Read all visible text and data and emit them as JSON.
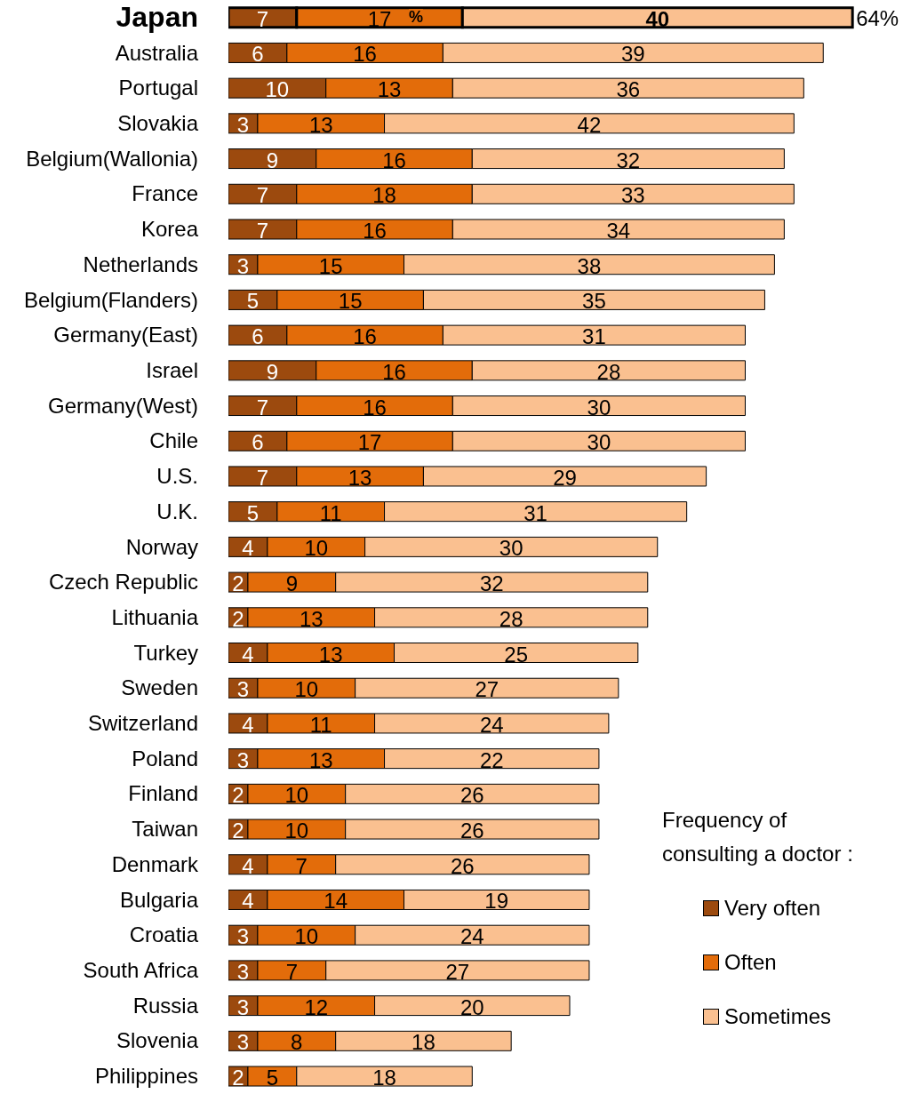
{
  "chart_data": {
    "type": "bar",
    "orientation": "horizontal",
    "stacked": true,
    "data_labels": true,
    "legend": "bottom right",
    "legend_title": "Frequency of consulting a doctor :",
    "tick_labels": "y",
    "xlim": [
      0,
      70
    ],
    "categories": [
      "Japan",
      "Australia",
      "Portugal",
      "Slovakia",
      "Belgium(Wallonia)",
      "France",
      "Korea",
      "Netherlands",
      "Belgium(Flanders)",
      "Germany(East)",
      "Israel",
      "Germany(West)",
      "Chile",
      "U.S.",
      "U.K.",
      "Norway",
      "Czech Republic",
      "Lithuania",
      "Turkey",
      "Sweden",
      "Switzerland",
      "Poland",
      "Finland",
      "Taiwan",
      "Denmark",
      "Bulgaria",
      "Croatia",
      "South Africa",
      "Russia",
      "Slovenia",
      "Philippines"
    ],
    "series": [
      {
        "name": "Very often",
        "color": "#9c4a0e",
        "values": [
          7,
          6,
          10,
          3,
          9,
          7,
          7,
          3,
          5,
          6,
          9,
          7,
          6,
          7,
          5,
          4,
          2,
          2,
          4,
          3,
          4,
          3,
          2,
          2,
          4,
          4,
          3,
          3,
          3,
          3,
          2
        ]
      },
      {
        "name": "Often",
        "color": "#e36c0a",
        "values": [
          17,
          16,
          13,
          13,
          16,
          18,
          16,
          15,
          15,
          16,
          16,
          16,
          17,
          13,
          11,
          10,
          9,
          13,
          13,
          10,
          11,
          13,
          10,
          10,
          7,
          14,
          10,
          7,
          12,
          8,
          5
        ]
      },
      {
        "name": "Sometimes",
        "color": "#fac090",
        "values": [
          40,
          39,
          36,
          42,
          32,
          33,
          34,
          38,
          35,
          31,
          28,
          30,
          30,
          29,
          31,
          30,
          32,
          28,
          25,
          27,
          24,
          22,
          26,
          26,
          26,
          19,
          24,
          27,
          20,
          18,
          18
        ]
      }
    ],
    "annotations": [
      {
        "text": "64%",
        "x": 64,
        "y": "Japan"
      },
      "%"
    ]
  }
}
